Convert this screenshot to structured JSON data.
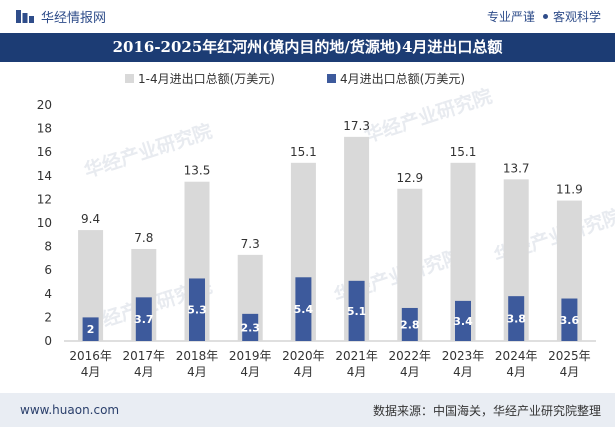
{
  "header": {
    "brand_name": "华经情报网",
    "tagline_left": "专业严谨",
    "tagline_right": "客观科学"
  },
  "title": "2016-2025年红河州(境内目的地/货源地)4月进出口总额",
  "footer": {
    "url": "www.huaon.com",
    "source": "数据来源：中国海关，华经产业研究院整理"
  },
  "watermark": "华经产业研究院",
  "colors": {
    "title_bg": "#1c3c74",
    "series_total": "#d9d9d9",
    "series_april": "#3d5a9c",
    "footer_bg": "#e9edf3"
  },
  "chart_data": {
    "type": "bar",
    "categories": [
      "2016年\n4月",
      "2017年\n4月",
      "2018年\n4月",
      "2019年\n4月",
      "2020年\n4月",
      "2021年\n4月",
      "2022年\n4月",
      "2023年\n4月",
      "2024年\n4月",
      "2025年\n4月"
    ],
    "series": [
      {
        "name": "1-4月进出口总额(万美元)",
        "values": [
          9.4,
          7.8,
          13.5,
          7.3,
          15.1,
          17.3,
          12.9,
          15.1,
          13.7,
          11.9
        ]
      },
      {
        "name": "4月进出口总额(万美元)",
        "values": [
          2,
          3.7,
          5.3,
          2.3,
          5.4,
          5.1,
          2.8,
          3.4,
          3.8,
          3.6
        ]
      }
    ],
    "ylim": [
      0,
      20
    ],
    "yticks": [
      0,
      2,
      4,
      6,
      8,
      10,
      12,
      14,
      16,
      18,
      20
    ],
    "legend_position": "top",
    "grid": false
  }
}
